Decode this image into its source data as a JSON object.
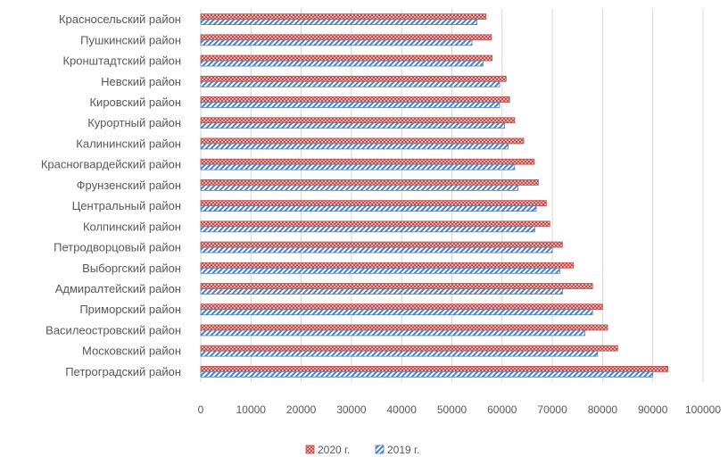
{
  "chart_data": {
    "type": "bar",
    "orientation": "horizontal",
    "categories": [
      "Красносельский район",
      "Пушкинский район",
      "Кронштадтский район",
      "Невский район",
      "Кировский район",
      "Курортный район",
      "Калининский район",
      "Красногвардейский район",
      "Фрунзенский район",
      "Центральный район",
      "Колпинский район",
      "Петродворцовый район",
      "Выборгский район",
      "Адмиралтейский район",
      "Приморский район",
      "Василеостровский район",
      "Московский район",
      "Петроградский район"
    ],
    "series": [
      {
        "name": "2020 г.",
        "color": "#c0504d",
        "pattern": "dots",
        "values": [
          56800,
          57900,
          58000,
          60800,
          61500,
          62500,
          64300,
          66400,
          67200,
          68800,
          69500,
          72000,
          74200,
          78000,
          80000,
          81000,
          83000,
          93000
        ]
      },
      {
        "name": "2019 г.",
        "color": "#4f81bd",
        "pattern": "diagonal-stripes",
        "values": [
          55000,
          54000,
          56200,
          59500,
          59500,
          60500,
          61200,
          62500,
          63200,
          66800,
          66500,
          70000,
          71500,
          72000,
          78000,
          76500,
          79000,
          90000
        ]
      }
    ],
    "xlim": [
      0,
      100000
    ],
    "x_ticks": [
      0,
      10000,
      20000,
      30000,
      40000,
      50000,
      60000,
      70000,
      80000,
      90000,
      100000
    ],
    "grid": "vertical",
    "legend_position": "bottom",
    "title": "",
    "xlabel": "",
    "ylabel": ""
  }
}
